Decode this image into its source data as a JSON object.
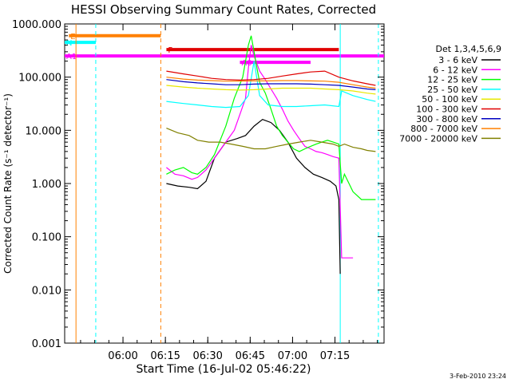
{
  "chart_data": {
    "type": "line",
    "title": "HESSI Observing Summary Count Rates, Corrected",
    "xlabel": "Start Time (16-Jul-02 05:46:22)",
    "ylabel": "Corrected Count Rate (s⁻¹ detector⁻¹)",
    "y_scale": "log",
    "ylim": [
      0.001,
      1000
    ],
    "x_range_minutes": [
      -7,
      106
    ],
    "x_ticks": [
      "06:00",
      "06:15",
      "06:30",
      "06:45",
      "07:00",
      "07:15"
    ],
    "y_ticks": [
      "0.001",
      "0.010",
      "0.100",
      "1.000",
      "10.000",
      "100.000",
      "1000.000"
    ],
    "legend_title": "Det 1,3,4,5,6,9",
    "legend_placement": "right",
    "timestamp": "3-Feb-2010 23:24",
    "flags": [
      {
        "label": "E",
        "color": "#ff8000",
        "start": -5.5,
        "end": 27,
        "value": 600
      },
      {
        "label": "N",
        "color": "#00ffff",
        "start": -7,
        "end": 4,
        "value": 450
      },
      {
        "label": "F",
        "color": "#e00000",
        "start": 29,
        "end": 90,
        "value": 330
      },
      {
        "label": "A1",
        "color": "#ff00ff",
        "start": -7,
        "end": 106,
        "value": 250
      },
      {
        "label": "A0",
        "color": "#ff00ff",
        "start": 55,
        "end": 80,
        "value": 190
      }
    ],
    "series": [
      {
        "name": "3 - 6 keV",
        "color": "#000000",
        "x": [
          29,
          33,
          37,
          40,
          43,
          46,
          50,
          54,
          57,
          60,
          63,
          66,
          69,
          72,
          75,
          78,
          81,
          84,
          87,
          89,
          90,
          90.5
        ],
        "y": [
          1.0,
          0.9,
          0.85,
          0.8,
          1.1,
          3.0,
          6.0,
          7.0,
          8.0,
          12,
          16,
          14,
          10,
          6,
          3,
          2.0,
          1.5,
          1.3,
          1.1,
          0.9,
          0.5,
          0.02
        ]
      },
      {
        "name": "6 - 12 keV",
        "color": "#ff00ff",
        "x": [
          29,
          32,
          35,
          38,
          40,
          43,
          46,
          50,
          53,
          55,
          57,
          58,
          59,
          60,
          62,
          64,
          66,
          68,
          70,
          72,
          74,
          76,
          78,
          80,
          82,
          84,
          86,
          88,
          90,
          91,
          92,
          95
        ],
        "y": [
          2.0,
          1.5,
          1.4,
          1.2,
          1.3,
          1.8,
          3.0,
          6.0,
          10,
          20,
          40,
          150,
          400,
          250,
          130,
          90,
          60,
          40,
          25,
          15,
          10,
          7,
          5,
          4.5,
          4.0,
          3.8,
          3.5,
          3.2,
          3.0,
          0.04,
          0.04,
          0.04
        ]
      },
      {
        "name": "12 - 25 keV",
        "color": "#00ff00",
        "x": [
          29,
          32,
          35,
          38,
          40,
          43,
          46,
          50,
          53,
          56,
          58,
          59,
          60,
          61,
          62,
          64,
          66,
          68,
          70,
          72,
          74,
          76,
          78,
          80,
          82,
          84,
          86,
          88,
          90,
          91,
          92,
          95,
          98,
          100,
          103
        ],
        "y": [
          1.5,
          1.8,
          2.0,
          1.6,
          1.5,
          2.0,
          3.5,
          12,
          40,
          100,
          400,
          600,
          300,
          150,
          80,
          50,
          25,
          12,
          8,
          6,
          4.5,
          4,
          4.5,
          5,
          5.5,
          6,
          6.5,
          6,
          5.5,
          1.0,
          1.5,
          0.7,
          0.5,
          0.5,
          0.5
        ]
      },
      {
        "name": "25 - 50 keV",
        "color": "#00ffff",
        "x": [
          29,
          35,
          40,
          45,
          50,
          55,
          58,
          60,
          62,
          65,
          70,
          75,
          80,
          85,
          90,
          91,
          95,
          100,
          103
        ],
        "y": [
          35,
          32,
          30,
          28,
          27,
          28,
          45,
          200,
          45,
          30,
          28,
          28,
          29,
          30,
          28,
          55,
          45,
          38,
          35
        ]
      },
      {
        "name": "50 - 100 keV",
        "color": "#e8e800",
        "x": [
          29,
          35,
          40,
          45,
          50,
          55,
          60,
          65,
          70,
          75,
          80,
          85,
          90,
          95,
          100,
          103
        ],
        "y": [
          70,
          65,
          62,
          60,
          58,
          57,
          58,
          60,
          62,
          62,
          62,
          60,
          58,
          55,
          50,
          48
        ]
      },
      {
        "name": "100 - 300 keV",
        "color": "#e00000",
        "x": [
          29,
          35,
          40,
          45,
          50,
          55,
          60,
          65,
          70,
          75,
          80,
          85,
          90,
          95,
          100,
          103
        ],
        "y": [
          130,
          115,
          105,
          95,
          90,
          88,
          90,
          95,
          105,
          115,
          125,
          130,
          100,
          85,
          75,
          70
        ]
      },
      {
        "name": "300 - 800 keV",
        "color": "#0000c0",
        "x": [
          29,
          35,
          40,
          45,
          50,
          55,
          60,
          65,
          70,
          75,
          80,
          85,
          90,
          95,
          100,
          103
        ],
        "y": [
          90,
          82,
          78,
          75,
          72,
          72,
          74,
          75,
          75,
          75,
          74,
          72,
          70,
          65,
          60,
          58
        ]
      },
      {
        "name": "800 - 7000 keV",
        "color": "#ff8000",
        "x": [
          29,
          35,
          40,
          45,
          50,
          55,
          60,
          65,
          70,
          75,
          80,
          85,
          90,
          95,
          100,
          103
        ],
        "y": [
          100,
          92,
          88,
          86,
          84,
          84,
          85,
          85,
          86,
          86,
          85,
          84,
          80,
          72,
          65,
          62
        ]
      },
      {
        "name": "7000 - 20000 keV",
        "color": "#808000",
        "x": [
          29,
          33,
          37,
          40,
          44,
          48,
          52,
          56,
          60,
          64,
          68,
          72,
          76,
          80,
          84,
          88,
          90,
          92,
          95,
          98,
          100,
          103
        ],
        "y": [
          11,
          9,
          8,
          6.5,
          6,
          6,
          5.5,
          5,
          4.5,
          4.5,
          5,
          5.5,
          6,
          6.5,
          6,
          5.5,
          5.0,
          5.5,
          4.8,
          4.5,
          4.2,
          4.0
        ]
      }
    ]
  }
}
